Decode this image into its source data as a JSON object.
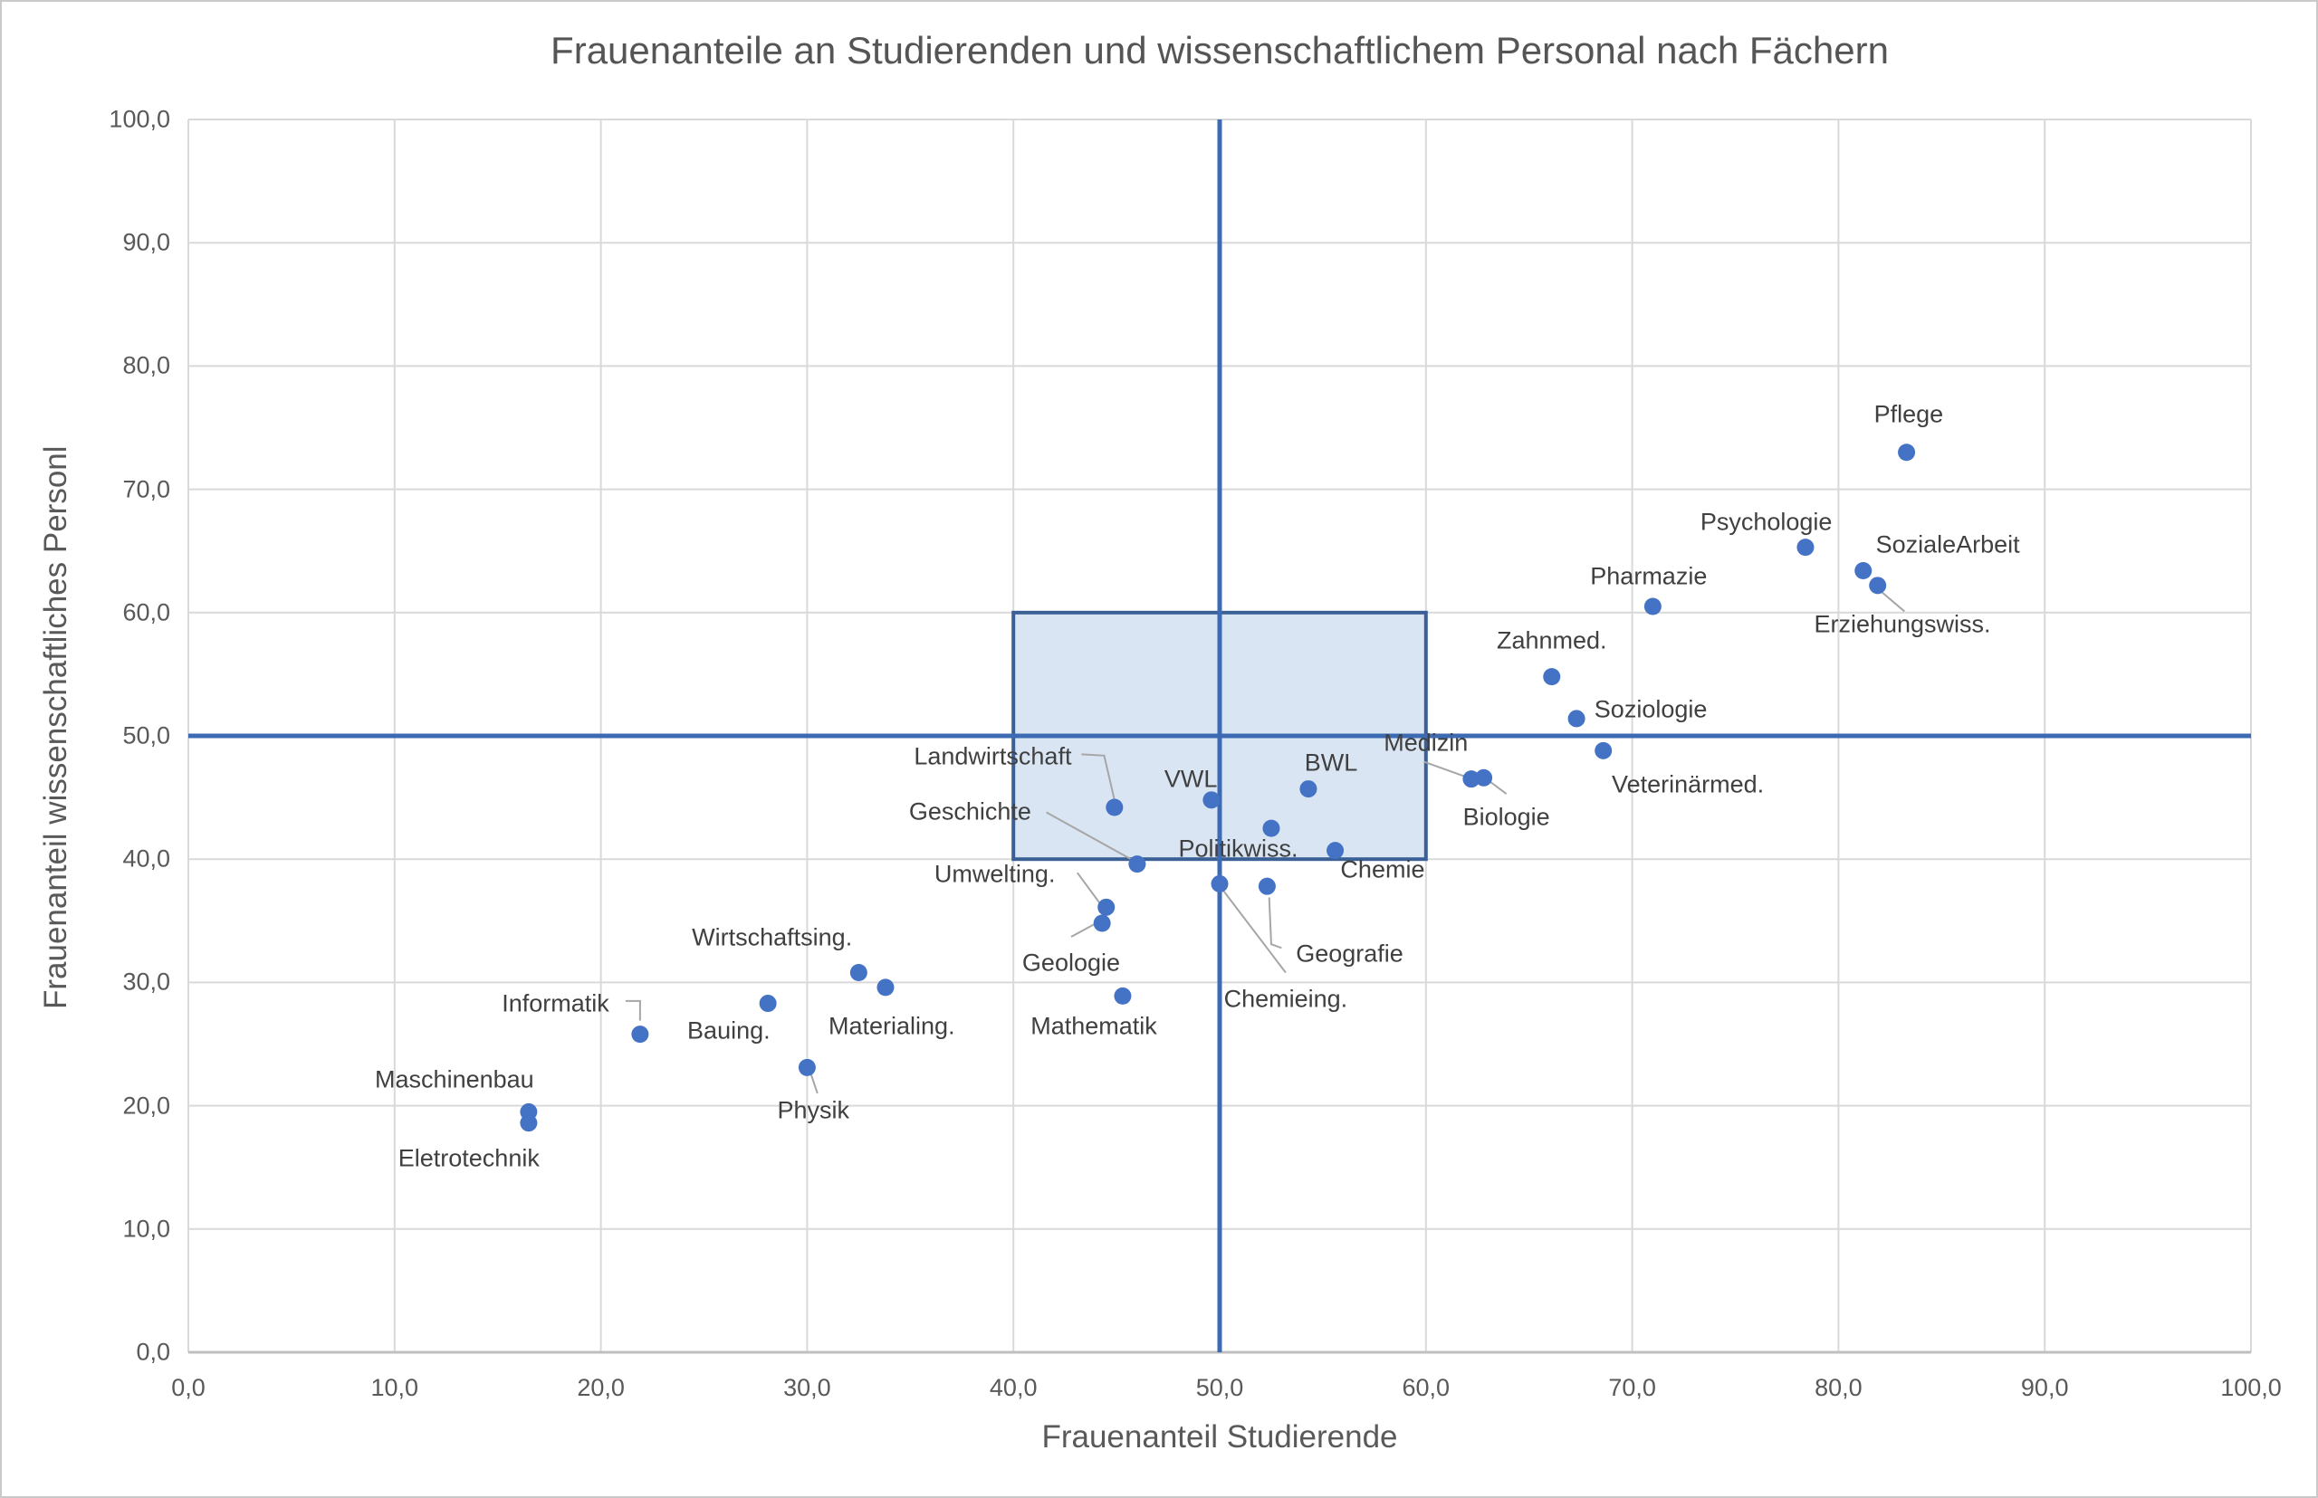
{
  "chart_data": {
    "type": "scatter",
    "title": "Frauenanteile an Studierenden und wissenschaftlichem Personal nach Fächern",
    "xlabel": "Frauenanteil Studierende",
    "ylabel": "Frauenanteil wissenschaftliches Personl",
    "xlim": [
      0,
      100
    ],
    "ylim": [
      0,
      100
    ],
    "grid": true,
    "legend": "none",
    "x_ticks": [
      {
        "v": 0,
        "label": "0,0"
      },
      {
        "v": 10,
        "label": "10,0"
      },
      {
        "v": 20,
        "label": "20,0"
      },
      {
        "v": 30,
        "label": "30,0"
      },
      {
        "v": 40,
        "label": "40,0"
      },
      {
        "v": 50,
        "label": "50,0"
      },
      {
        "v": 60,
        "label": "60,0"
      },
      {
        "v": 70,
        "label": "70,0"
      },
      {
        "v": 80,
        "label": "80,0"
      },
      {
        "v": 90,
        "label": "90,0"
      },
      {
        "v": 100,
        "label": "100,0"
      }
    ],
    "y_ticks": [
      {
        "v": 0,
        "label": "0,0"
      },
      {
        "v": 10,
        "label": "10,0"
      },
      {
        "v": 20,
        "label": "20,0"
      },
      {
        "v": 30,
        "label": "30,0"
      },
      {
        "v": 40,
        "label": "40,0"
      },
      {
        "v": 50,
        "label": "50,0"
      },
      {
        "v": 60,
        "label": "60,0"
      },
      {
        "v": 70,
        "label": "70,0"
      },
      {
        "v": 80,
        "label": "80,0"
      },
      {
        "v": 90,
        "label": "90,0"
      },
      {
        "v": 100,
        "label": "100,0"
      }
    ],
    "reference_lines": {
      "x": 50,
      "y": 50
    },
    "highlight_rect": {
      "x0": 40,
      "x1": 60,
      "y0": 40,
      "y1": 60
    },
    "points": [
      {
        "name": "Pflege",
        "x": 83.3,
        "y": 73.0,
        "label_x": 83.4,
        "label_y": 76.1,
        "leader": null
      },
      {
        "name": "Psychologie",
        "x": 78.4,
        "y": 65.3,
        "label_x": 76.5,
        "label_y": 67.3,
        "leader": null
      },
      {
        "name": "SozialeArbeit",
        "x": 81.2,
        "y": 63.4,
        "label_x": 85.3,
        "label_y": 65.5,
        "leader": null
      },
      {
        "name": "Erziehungswiss.",
        "x": 81.9,
        "y": 62.2,
        "label_x": 83.1,
        "label_y": 59.0,
        "leader": [
          [
            82.0,
            61.8
          ],
          [
            83.2,
            60.1
          ]
        ]
      },
      {
        "name": "Pharmazie",
        "x": 71.0,
        "y": 60.5,
        "label_x": 70.8,
        "label_y": 62.9,
        "leader": null
      },
      {
        "name": "Zahnmed.",
        "x": 66.1,
        "y": 54.8,
        "label_x": 66.1,
        "label_y": 57.7,
        "leader": null
      },
      {
        "name": "Soziologie",
        "x": 67.3,
        "y": 51.4,
        "label_x": 70.9,
        "label_y": 52.1,
        "leader": null
      },
      {
        "name": "Veterinärmed.",
        "x": 68.6,
        "y": 48.8,
        "label_x": 72.7,
        "label_y": 46.0,
        "leader": null
      },
      {
        "name": "Medizin",
        "x": 62.2,
        "y": 46.5,
        "label_x": 60.0,
        "label_y": 49.4,
        "leader": [
          [
            59.9,
            47.9
          ],
          [
            61.9,
            46.7
          ]
        ]
      },
      {
        "name": "Biologie",
        "x": 62.8,
        "y": 46.6,
        "label_x": 63.9,
        "label_y": 43.4,
        "leader": [
          [
            63.9,
            45.3
          ],
          [
            63.1,
            46.3
          ]
        ]
      },
      {
        "name": "BWL",
        "x": 54.3,
        "y": 45.7,
        "label_x": 55.4,
        "label_y": 47.8,
        "leader": null
      },
      {
        "name": "VWL",
        "x": 49.6,
        "y": 44.8,
        "label_x": 48.6,
        "label_y": 46.5,
        "leader": null
      },
      {
        "name": "Landwirtschaft",
        "x": 44.9,
        "y": 44.2,
        "label_x": 39.0,
        "label_y": 48.3,
        "leader": [
          [
            43.3,
            48.5
          ],
          [
            44.4,
            48.4
          ],
          [
            44.9,
            44.8
          ]
        ]
      },
      {
        "name": "Geschichte",
        "x": 46.0,
        "y": 39.6,
        "label_x": 37.9,
        "label_y": 43.8,
        "leader": [
          [
            41.6,
            43.8
          ],
          [
            45.7,
            40.0
          ]
        ]
      },
      {
        "name": "Politikwiss.",
        "x": 52.5,
        "y": 42.5,
        "label_x": 50.9,
        "label_y": 40.8,
        "leader": null
      },
      {
        "name": "Chemie",
        "x": 55.6,
        "y": 40.7,
        "label_x": 57.9,
        "label_y": 39.1,
        "leader": null
      },
      {
        "name": "Chemieing.",
        "x": 50.0,
        "y": 38.0,
        "label_x": 53.2,
        "label_y": 28.6,
        "leader": [
          [
            50.2,
            37.4
          ],
          [
            53.2,
            30.8
          ]
        ]
      },
      {
        "name": "Geografie",
        "x": 52.3,
        "y": 37.8,
        "label_x": 56.3,
        "label_y": 32.3,
        "leader": [
          [
            52.4,
            36.9
          ],
          [
            52.5,
            33.1
          ],
          [
            53.0,
            32.8
          ]
        ]
      },
      {
        "name": "Umwelting.",
        "x": 44.5,
        "y": 36.1,
        "label_x": 39.1,
        "label_y": 38.8,
        "leader": [
          [
            43.1,
            38.9
          ],
          [
            44.2,
            36.4
          ]
        ]
      },
      {
        "name": "Geologie",
        "x": 44.3,
        "y": 34.8,
        "label_x": 42.8,
        "label_y": 31.6,
        "leader": [
          [
            42.8,
            33.7
          ],
          [
            43.9,
            34.7
          ]
        ]
      },
      {
        "name": "Mathematik",
        "x": 45.3,
        "y": 28.9,
        "label_x": 43.9,
        "label_y": 26.4,
        "leader": null
      },
      {
        "name": "Wirtschaftsing.",
        "x": 32.5,
        "y": 30.8,
        "label_x": 28.3,
        "label_y": 33.6,
        "leader": null
      },
      {
        "name": "Materialing.",
        "x": 33.8,
        "y": 29.6,
        "label_x": 34.1,
        "label_y": 26.4,
        "leader": null
      },
      {
        "name": "Bauing.",
        "x": 28.1,
        "y": 28.3,
        "label_x": 26.2,
        "label_y": 26.1,
        "leader": null
      },
      {
        "name": "Informatik",
        "x": 21.9,
        "y": 25.8,
        "label_x": 17.8,
        "label_y": 28.3,
        "leader": [
          [
            21.2,
            28.5
          ],
          [
            21.9,
            28.5
          ],
          [
            21.9,
            26.9
          ]
        ]
      },
      {
        "name": "Physik",
        "x": 30.0,
        "y": 23.1,
        "label_x": 30.3,
        "label_y": 19.6,
        "leader": [
          [
            30.2,
            22.5
          ],
          [
            30.5,
            21.0
          ]
        ]
      },
      {
        "name": "Maschinenbau",
        "x": 16.5,
        "y": 19.5,
        "label_x": 12.9,
        "label_y": 22.1,
        "leader": null
      },
      {
        "name": "Eletrotechnik",
        "x": 16.5,
        "y": 18.6,
        "label_x": 13.6,
        "label_y": 15.7,
        "leader": null
      }
    ],
    "colors": {
      "marker": "#4472c4",
      "crosshair_line": "#3d6bb3",
      "rect_border": "#3a6096",
      "rect_fill": "#d9e5f3",
      "gridline": "#d9d9d9",
      "axis_line": "#bfbfbf",
      "leader_line": "#a6a6a6",
      "title_text": "#555555",
      "tick_text": "#595959",
      "label_text": "#404040"
    }
  }
}
